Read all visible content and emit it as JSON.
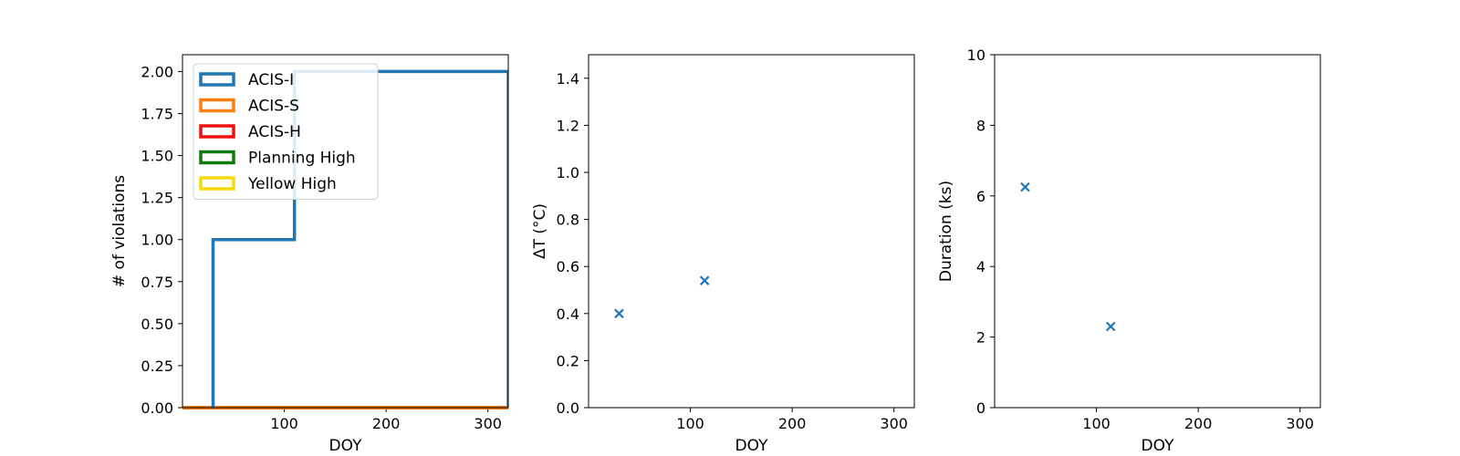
{
  "chart_data": [
    {
      "type": "step",
      "xlabel": "DOY",
      "ylabel": "# of violations",
      "xlim": [
        0,
        320
      ],
      "ylim": [
        0,
        2.1
      ],
      "xticks": [
        100,
        200,
        300
      ],
      "yticks": [
        0.0,
        0.25,
        0.5,
        0.75,
        1.0,
        1.25,
        1.5,
        1.75,
        2.0
      ],
      "ytick_labels": [
        "0.00",
        "0.25",
        "0.50",
        "0.75",
        "1.00",
        "1.25",
        "1.50",
        "1.75",
        "2.00"
      ],
      "legend": {
        "placement": "upper-left"
      },
      "series": [
        {
          "name": "ACIS-I",
          "color": "#1f77b4",
          "x": [
            30,
            110,
            320
          ],
          "y": [
            1,
            2,
            2
          ]
        },
        {
          "name": "ACIS-S",
          "color": "#ff7f0e",
          "x": [
            0,
            320
          ],
          "y": [
            0,
            0
          ]
        },
        {
          "name": "ACIS-H",
          "color": "#ee1111",
          "x": [
            0,
            320
          ],
          "y": [
            0,
            0
          ]
        },
        {
          "name": "Planning High",
          "color": "#107c10",
          "x": [
            0,
            320
          ],
          "y": [
            0,
            0
          ]
        },
        {
          "name": "Yellow High",
          "color": "#f5d90a",
          "x": [
            0,
            320
          ],
          "y": [
            0,
            0
          ]
        }
      ]
    },
    {
      "type": "scatter",
      "xlabel": "DOY",
      "ylabel": "ΔT (°C)",
      "xlim": [
        0,
        320
      ],
      "ylim": [
        0,
        1.5
      ],
      "xticks": [
        100,
        200,
        300
      ],
      "yticks": [
        0.0,
        0.2,
        0.4,
        0.6,
        0.8,
        1.0,
        1.2,
        1.4
      ],
      "ytick_labels": [
        "0.0",
        "0.2",
        "0.4",
        "0.6",
        "0.8",
        "1.0",
        "1.2",
        "1.4"
      ],
      "marker": "x",
      "color": "#1f77b4",
      "points": [
        {
          "x": 30,
          "y": 0.4
        },
        {
          "x": 114,
          "y": 0.54
        }
      ]
    },
    {
      "type": "scatter",
      "xlabel": "DOY",
      "ylabel": "Duration (ks)",
      "xlim": [
        0,
        320
      ],
      "ylim": [
        0,
        10
      ],
      "xticks": [
        100,
        200,
        300
      ],
      "yticks": [
        0,
        2,
        4,
        6,
        8,
        10
      ],
      "ytick_labels": [
        "0",
        "2",
        "4",
        "6",
        "8",
        "10"
      ],
      "marker": "x",
      "color": "#1f77b4",
      "points": [
        {
          "x": 30,
          "y": 6.25
        },
        {
          "x": 114,
          "y": 2.3
        }
      ]
    }
  ]
}
